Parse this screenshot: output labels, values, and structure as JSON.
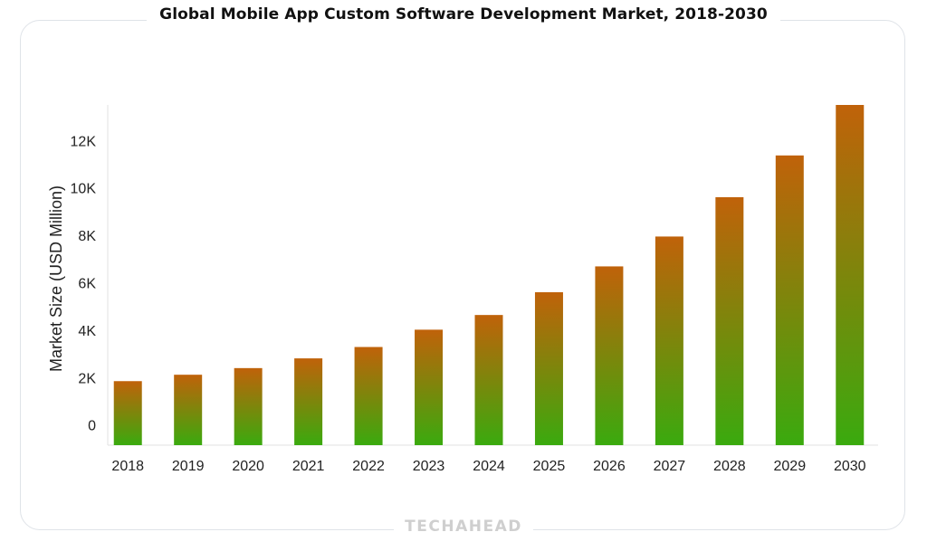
{
  "chart_data": {
    "type": "bar",
    "title": "Global Mobile App Custom Software Development Market, 2018-2030",
    "xlabel": "",
    "ylabel": "Market Size (USD Million)",
    "categories": [
      "2018",
      "2019",
      "2020",
      "2021",
      "2022",
      "2023",
      "2024",
      "2025",
      "2026",
      "2027",
      "2028",
      "2029",
      "2030"
    ],
    "values": [
      1850,
      2120,
      2400,
      2810,
      3290,
      4020,
      4640,
      5600,
      6690,
      7950,
      9610,
      11370,
      13500
    ],
    "ylim": [
      -850,
      13500
    ],
    "yticks": [
      0,
      2000,
      4000,
      6000,
      8000,
      10000,
      12000
    ],
    "ytick_labels": [
      "0",
      "2K",
      "4K",
      "6K",
      "8K",
      "10K",
      "12K"
    ],
    "bar_gradient": {
      "top": "#c0620a",
      "bottom": "#3aaa0e"
    },
    "grid": false,
    "legend": "none"
  },
  "brand": "TECHAHEAD"
}
